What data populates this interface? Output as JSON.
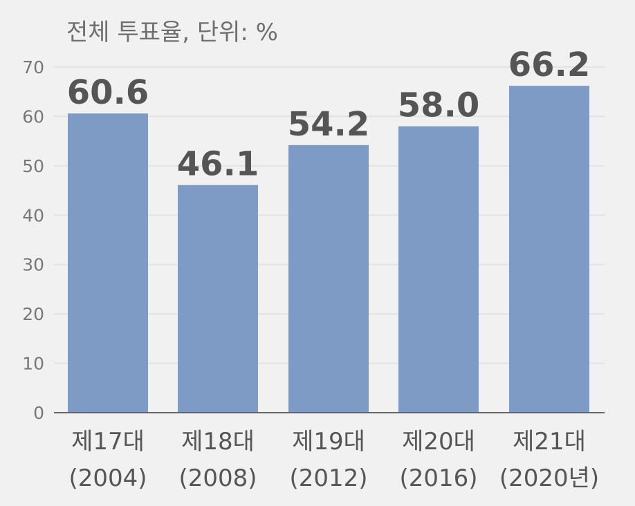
{
  "chart_data": {
    "type": "bar",
    "title": "",
    "unit_label": "전체 투표율, 단위: %",
    "xlabel": "",
    "ylabel": "",
    "ylim": [
      0,
      70
    ],
    "yticks": [
      0,
      10,
      20,
      30,
      40,
      50,
      60,
      70
    ],
    "grid": true,
    "legend": "none",
    "categories": [
      {
        "line1": "제17대",
        "line2": "(2004)"
      },
      {
        "line1": "제18대",
        "line2": "(2008)"
      },
      {
        "line1": "제19대",
        "line2": "(2012)"
      },
      {
        "line1": "제20대",
        "line2": "(2016)"
      },
      {
        "line1": "제21대",
        "line2": "(2020년)"
      }
    ],
    "values": [
      60.6,
      46.1,
      54.2,
      58.0,
      66.2
    ],
    "value_labels": [
      "60.6",
      "46.1",
      "54.2",
      "58.0",
      "66.2"
    ],
    "colors": {
      "bar": "#7e9bc6",
      "grid": "#e3e3e3",
      "axis": "#666666",
      "background": "#f1f1f1"
    }
  }
}
